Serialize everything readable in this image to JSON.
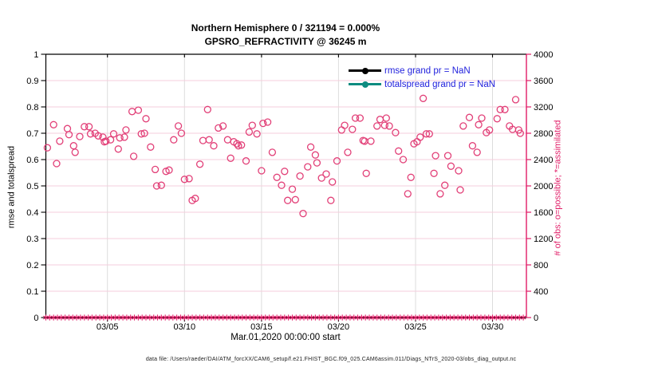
{
  "chart_data": {
    "type": "scatter",
    "title": "Northern Hemisphere 0 / 321194 = 0.000%",
    "subtitle": "GPSRO_REFRACTIVITY @ 36245 m",
    "xlabel": "Mar.01,2020 00:00:00 start",
    "ylabel_left": "rmse and totalspread",
    "ylabel_right": "# of obs: o=possible; *=assimilated",
    "x_axis": {
      "unit": "days since 2020-03-01 00:00",
      "range": [
        0,
        31.2
      ],
      "tick_days": [
        4,
        9,
        14,
        19,
        24,
        29
      ],
      "tick_labels": [
        "03/05",
        "03/10",
        "03/15",
        "03/20",
        "03/25",
        "03/30"
      ]
    },
    "left_axis": {
      "range": [
        0,
        1
      ],
      "tick_values": [
        0,
        0.1,
        0.2,
        0.3,
        0.4,
        0.5,
        0.6,
        0.7,
        0.8,
        0.9,
        1
      ],
      "tick_labels": [
        "0",
        "0.1",
        "0.2",
        "0.3",
        "0.4",
        "0.5",
        "0.6",
        "0.7",
        "0.8",
        "0.9",
        "1"
      ],
      "color": "#000000"
    },
    "right_axis": {
      "range": [
        0,
        4000
      ],
      "tick_values": [
        0,
        400,
        800,
        1200,
        1600,
        2000,
        2400,
        2800,
        3200,
        3600,
        4000
      ],
      "tick_labels": [
        "0",
        "400",
        "800",
        "1200",
        "1600",
        "2000",
        "2400",
        "2800",
        "3200",
        "3600",
        "4000"
      ],
      "color": "#E11D67"
    },
    "grid": {
      "horizontal_color": "#F6CEDC",
      "vertical_color": "#DCDCDC"
    },
    "legend": {
      "position": "top-right-inside",
      "text_color": "#2222DD",
      "items": [
        {
          "label": "rmse grand pr = NaN",
          "color": "#000000",
          "value": "NaN"
        },
        {
          "label": "totalspread grand pr = NaN",
          "color": "#0E8B80",
          "value": "NaN"
        }
      ]
    },
    "series": [
      {
        "name": "possible",
        "marker": "o",
        "color": "#E24078",
        "y_axis": "right",
        "points_day_count": [
          [
            0.1,
            2580
          ],
          [
            0.5,
            2930
          ],
          [
            0.7,
            2340
          ],
          [
            0.9,
            2680
          ],
          [
            1.4,
            2870
          ],
          [
            1.5,
            2780
          ],
          [
            1.8,
            2610
          ],
          [
            1.9,
            2510
          ],
          [
            2.2,
            2750
          ],
          [
            2.5,
            2900
          ],
          [
            2.8,
            2900
          ],
          [
            2.9,
            2790
          ],
          [
            3.2,
            2800
          ],
          [
            3.4,
            2760
          ],
          [
            3.7,
            2740
          ],
          [
            3.8,
            2670
          ],
          [
            3.9,
            2680
          ],
          [
            4.2,
            2700
          ],
          [
            4.4,
            2790
          ],
          [
            4.7,
            2560
          ],
          [
            4.8,
            2730
          ],
          [
            5.1,
            2740
          ],
          [
            5.2,
            2850
          ],
          [
            5.6,
            3130
          ],
          [
            5.7,
            2450
          ],
          [
            6.0,
            3150
          ],
          [
            6.2,
            2790
          ],
          [
            6.4,
            2800
          ],
          [
            6.5,
            3020
          ],
          [
            6.8,
            2590
          ],
          [
            7.1,
            2250
          ],
          [
            7.2,
            2000
          ],
          [
            7.5,
            2010
          ],
          [
            7.8,
            2220
          ],
          [
            8.0,
            2240
          ],
          [
            8.3,
            2700
          ],
          [
            8.6,
            2910
          ],
          [
            8.8,
            2800
          ],
          [
            9.0,
            2100
          ],
          [
            9.3,
            2110
          ],
          [
            9.5,
            1780
          ],
          [
            9.7,
            1810
          ],
          [
            10.0,
            2330
          ],
          [
            10.2,
            2690
          ],
          [
            10.5,
            3160
          ],
          [
            10.6,
            2700
          ],
          [
            10.9,
            2610
          ],
          [
            11.2,
            2880
          ],
          [
            11.5,
            2910
          ],
          [
            11.8,
            2700
          ],
          [
            12.0,
            2420
          ],
          [
            12.2,
            2670
          ],
          [
            12.4,
            2640
          ],
          [
            12.5,
            2610
          ],
          [
            12.7,
            2620
          ],
          [
            13.0,
            2380
          ],
          [
            13.2,
            2820
          ],
          [
            13.4,
            2920
          ],
          [
            13.7,
            2790
          ],
          [
            14.0,
            2230
          ],
          [
            14.1,
            2950
          ],
          [
            14.4,
            2970
          ],
          [
            14.7,
            2510
          ],
          [
            15.0,
            2130
          ],
          [
            15.3,
            2010
          ],
          [
            15.5,
            2220
          ],
          [
            15.7,
            1780
          ],
          [
            16.0,
            1950
          ],
          [
            16.2,
            1790
          ],
          [
            16.5,
            2150
          ],
          [
            16.7,
            1580
          ],
          [
            17.0,
            2290
          ],
          [
            17.2,
            2590
          ],
          [
            17.5,
            2470
          ],
          [
            17.6,
            2350
          ],
          [
            17.9,
            2120
          ],
          [
            18.2,
            2180
          ],
          [
            18.5,
            1780
          ],
          [
            18.6,
            2060
          ],
          [
            18.9,
            2380
          ],
          [
            19.2,
            2850
          ],
          [
            19.4,
            2920
          ],
          [
            19.6,
            2510
          ],
          [
            19.9,
            2860
          ],
          [
            20.1,
            3030
          ],
          [
            20.4,
            3030
          ],
          [
            20.6,
            2690
          ],
          [
            20.7,
            2680
          ],
          [
            20.8,
            2190
          ],
          [
            21.1,
            2680
          ],
          [
            21.5,
            2910
          ],
          [
            21.7,
            3010
          ],
          [
            22.0,
            2920
          ],
          [
            22.1,
            3030
          ],
          [
            22.3,
            2910
          ],
          [
            22.7,
            2810
          ],
          [
            22.9,
            2530
          ],
          [
            23.2,
            2400
          ],
          [
            23.5,
            1880
          ],
          [
            23.7,
            2130
          ],
          [
            23.9,
            2640
          ],
          [
            24.1,
            2670
          ],
          [
            24.3,
            2740
          ],
          [
            24.5,
            3330
          ],
          [
            24.7,
            2790
          ],
          [
            24.9,
            2790
          ],
          [
            25.2,
            2190
          ],
          [
            25.3,
            2460
          ],
          [
            25.6,
            1880
          ],
          [
            25.9,
            2010
          ],
          [
            26.1,
            2460
          ],
          [
            26.3,
            2300
          ],
          [
            26.8,
            2230
          ],
          [
            26.9,
            1940
          ],
          [
            27.1,
            2910
          ],
          [
            27.5,
            3040
          ],
          [
            27.7,
            2610
          ],
          [
            28.0,
            2510
          ],
          [
            28.1,
            2930
          ],
          [
            28.3,
            3030
          ],
          [
            28.6,
            2810
          ],
          [
            28.8,
            2850
          ],
          [
            29.3,
            3020
          ],
          [
            29.5,
            3160
          ],
          [
            29.8,
            3160
          ],
          [
            30.1,
            2910
          ],
          [
            30.3,
            2860
          ],
          [
            30.5,
            3310
          ],
          [
            30.7,
            2850
          ],
          [
            30.8,
            2800
          ]
        ]
      },
      {
        "name": "assimilated",
        "marker": "*",
        "color": "#E11D67",
        "y_axis": "right",
        "constant_value": 0,
        "day_start": 0,
        "day_end": 31,
        "n_markers": 125
      }
    ]
  },
  "footer": "data file: /Users/raeder/DAI/ATM_forcXX/CAM6_setup/f.e21.FHIST_BGC.f09_025.CAM6assim.011/Diags_NTrS_2020-03/obs_diag_output.nc"
}
